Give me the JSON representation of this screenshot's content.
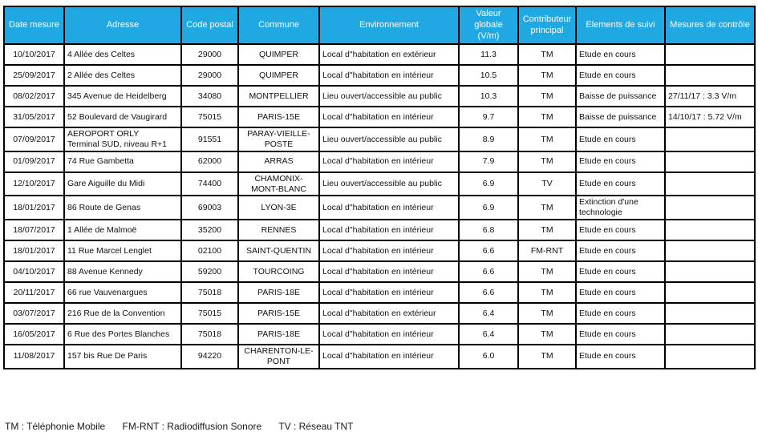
{
  "colors": {
    "header_bg": "#1FA8E2",
    "header_text": "#FFFFFF",
    "border": "#000000"
  },
  "table": {
    "columns": [
      {
        "key": "date",
        "label": "Date mesure",
        "align": "ac"
      },
      {
        "key": "adresse",
        "label": "Adresse",
        "align": "al pre"
      },
      {
        "key": "code_postal",
        "label": "Code postal",
        "align": "ac"
      },
      {
        "key": "commune",
        "label": "Commune",
        "align": "ac"
      },
      {
        "key": "environnement",
        "label": "Environnement",
        "align": "al"
      },
      {
        "key": "valeur",
        "label": "Valeur globale (V/m)",
        "align": "ac"
      },
      {
        "key": "contributeur",
        "label": "Contributeur principal",
        "align": "ac"
      },
      {
        "key": "suivi",
        "label": "Elements de suivi",
        "align": "al"
      },
      {
        "key": "controle",
        "label": "Mesures de contrôle",
        "align": "al"
      }
    ],
    "rows": [
      {
        "date": "10/10/2017",
        "adresse": "4 Allée des Celtes",
        "code_postal": "29000",
        "commune": "QUIMPER",
        "environnement": "Local d\"habitation en extérieur",
        "valeur": "11.3",
        "contributeur": "TM",
        "suivi": "Etude en cours",
        "controle": ""
      },
      {
        "date": "25/09/2017",
        "adresse": "2 Allée des Celtes",
        "code_postal": "29000",
        "commune": "QUIMPER",
        "environnement": "Local d\"habitation en intérieur",
        "valeur": "10.5",
        "contributeur": "TM",
        "suivi": "Etude en cours",
        "controle": ""
      },
      {
        "date": "08/02/2017",
        "adresse": "345 Avenue de Heidelberg",
        "code_postal": "34080",
        "commune": "MONTPELLIER",
        "environnement": "Lieu ouvert/accessible au public",
        "valeur": "10.3",
        "contributeur": "TM",
        "suivi": "Baisse de puissance",
        "controle": "27/11/17 : 3.3 V/m"
      },
      {
        "date": "31/05/2017",
        "adresse": "52 Boulevard de Vaugirard",
        "code_postal": "75015",
        "commune": "PARIS-15E",
        "environnement": "Local d\"habitation en intérieur",
        "valeur": "9.7",
        "contributeur": "TM",
        "suivi": "Baisse de puissance",
        "controle": "14/10/17 : 5.72 V/m"
      },
      {
        "date": "07/09/2017",
        "adresse": "AEROPORT ORLY\nTerminal SUD, niveau R+1",
        "code_postal": "91551",
        "commune": "PARAY-VIEILLE-POSTE",
        "environnement": "Lieu ouvert/accessible au public",
        "valeur": "8.9",
        "contributeur": "TM",
        "suivi": "Etude en cours",
        "controle": ""
      },
      {
        "date": "01/09/2017",
        "adresse": "74 Rue Gambetta",
        "code_postal": "62000",
        "commune": "ARRAS",
        "environnement": "Local d\"habitation en intérieur",
        "valeur": "7.9",
        "contributeur": "TM",
        "suivi": "Etude en cours",
        "controle": ""
      },
      {
        "date": "12/10/2017",
        "adresse": "Gare Aiguille du Midi",
        "code_postal": "74400",
        "commune": "CHAMONIX-MONT-BLANC",
        "environnement": "Lieu ouvert/accessible au public",
        "valeur": "6.9",
        "contributeur": "TV",
        "suivi": "Etude en cours",
        "controle": ""
      },
      {
        "date": "18/01/2017",
        "adresse": "86 Route de Genas",
        "code_postal": "69003",
        "commune": "LYON-3E",
        "environnement": "Local d\"habitation en intérieur",
        "valeur": "6.9",
        "contributeur": "TM",
        "suivi": "Extinction d'une technologie",
        "controle": ""
      },
      {
        "date": "18/07/2017",
        "adresse": "1 Allée de Malmoë",
        "code_postal": "35200",
        "commune": "RENNES",
        "environnement": "Local d\"habitation en intérieur",
        "valeur": "6.8",
        "contributeur": "TM",
        "suivi": "Etude en cours",
        "controle": ""
      },
      {
        "date": "18/01/2017",
        "adresse": "11 Rue Marcel Lenglet",
        "code_postal": "02100",
        "commune": "SAINT-QUENTIN",
        "environnement": "Local d\"habitation en intérieur",
        "valeur": "6.6",
        "contributeur": "FM-RNT",
        "suivi": "Etude en cours",
        "controle": ""
      },
      {
        "date": "04/10/2017",
        "adresse": "88 Avenue Kennedy",
        "code_postal": "59200",
        "commune": "TOURCOING",
        "environnement": "Local d\"habitation en intérieur",
        "valeur": "6.6",
        "contributeur": "TM",
        "suivi": "Etude en cours",
        "controle": ""
      },
      {
        "date": "20/11/2017",
        "adresse": "66 rue Vauvenargues",
        "code_postal": "75018",
        "commune": "PARIS-18E",
        "environnement": "Local d\"habitation en intérieur",
        "valeur": "6.6",
        "contributeur": "TM",
        "suivi": "Etude en cours",
        "controle": ""
      },
      {
        "date": "03/07/2017",
        "adresse": "216 Rue de la Convention",
        "code_postal": "75015",
        "commune": "PARIS-15E",
        "environnement": "Local d\"habitation en extérieur",
        "valeur": "6.4",
        "contributeur": "TM",
        "suivi": "Etude en cours",
        "controle": ""
      },
      {
        "date": "16/05/2017",
        "adresse": "6 Rue des Portes Blanches",
        "code_postal": "75018",
        "commune": "PARIS-18E",
        "environnement": "Local d\"habitation en intérieur",
        "valeur": "6.4",
        "contributeur": "TM",
        "suivi": "Etude en cours",
        "controle": ""
      },
      {
        "date": "11/08/2017",
        "adresse": "157 bis Rue De Paris",
        "code_postal": "94220",
        "commune": "CHARENTON-LE-PONT",
        "environnement": "Local d\"habitation en intérieur",
        "valeur": "6.0",
        "contributeur": "TM",
        "suivi": "Etude en cours",
        "controle": ""
      }
    ]
  },
  "legend": {
    "items": [
      "TM : Téléphonie Mobile",
      "FM-RNT : Radiodiffusion Sonore",
      "TV : Réseau TNT"
    ]
  }
}
